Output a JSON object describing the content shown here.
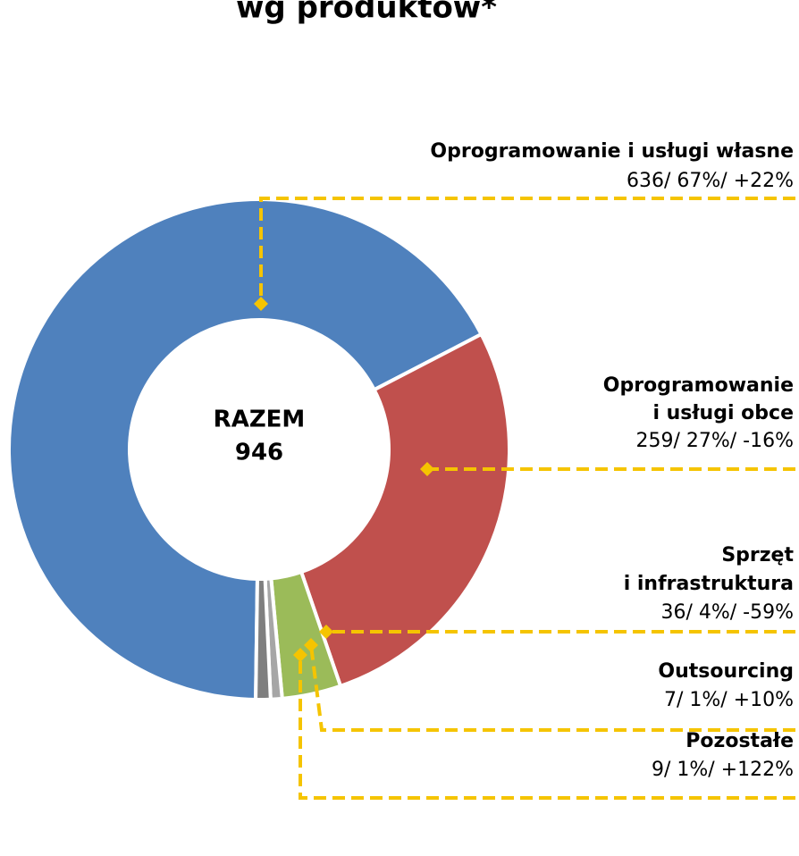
{
  "chart_data": {
    "type": "donut",
    "title": "wg produktów*",
    "center_label": [
      "RAZEM",
      "946"
    ],
    "series": [
      {
        "name": [
          "Oprogramowanie i usługi własne"
        ],
        "color": "#4f81bd",
        "values": [
          636
        ],
        "value_labels": [
          "636/ 67%/ +22%"
        ]
      },
      {
        "name": [
          "Oprogramowanie",
          "i usługi obce"
        ],
        "color": "#c0504d",
        "values": [
          259
        ],
        "value_labels": [
          "259/ 27%/ -16%"
        ]
      },
      {
        "name": [
          "Sprzęt",
          "i infrastruktura"
        ],
        "color": "#9bbb59",
        "values": [
          36
        ],
        "value_labels": [
          "36/ 4%/ -59%"
        ]
      },
      {
        "name": [
          "Outsourcing"
        ],
        "color": "#a6a6a6",
        "values": [
          7
        ],
        "value_labels": [
          "7/ 1%/ +10%"
        ]
      },
      {
        "name": [
          "Pozostałe"
        ],
        "color": "#7f7f7f",
        "values": [
          9
        ],
        "value_labels": [
          "9/ 1%/ +122%"
        ]
      }
    ]
  }
}
